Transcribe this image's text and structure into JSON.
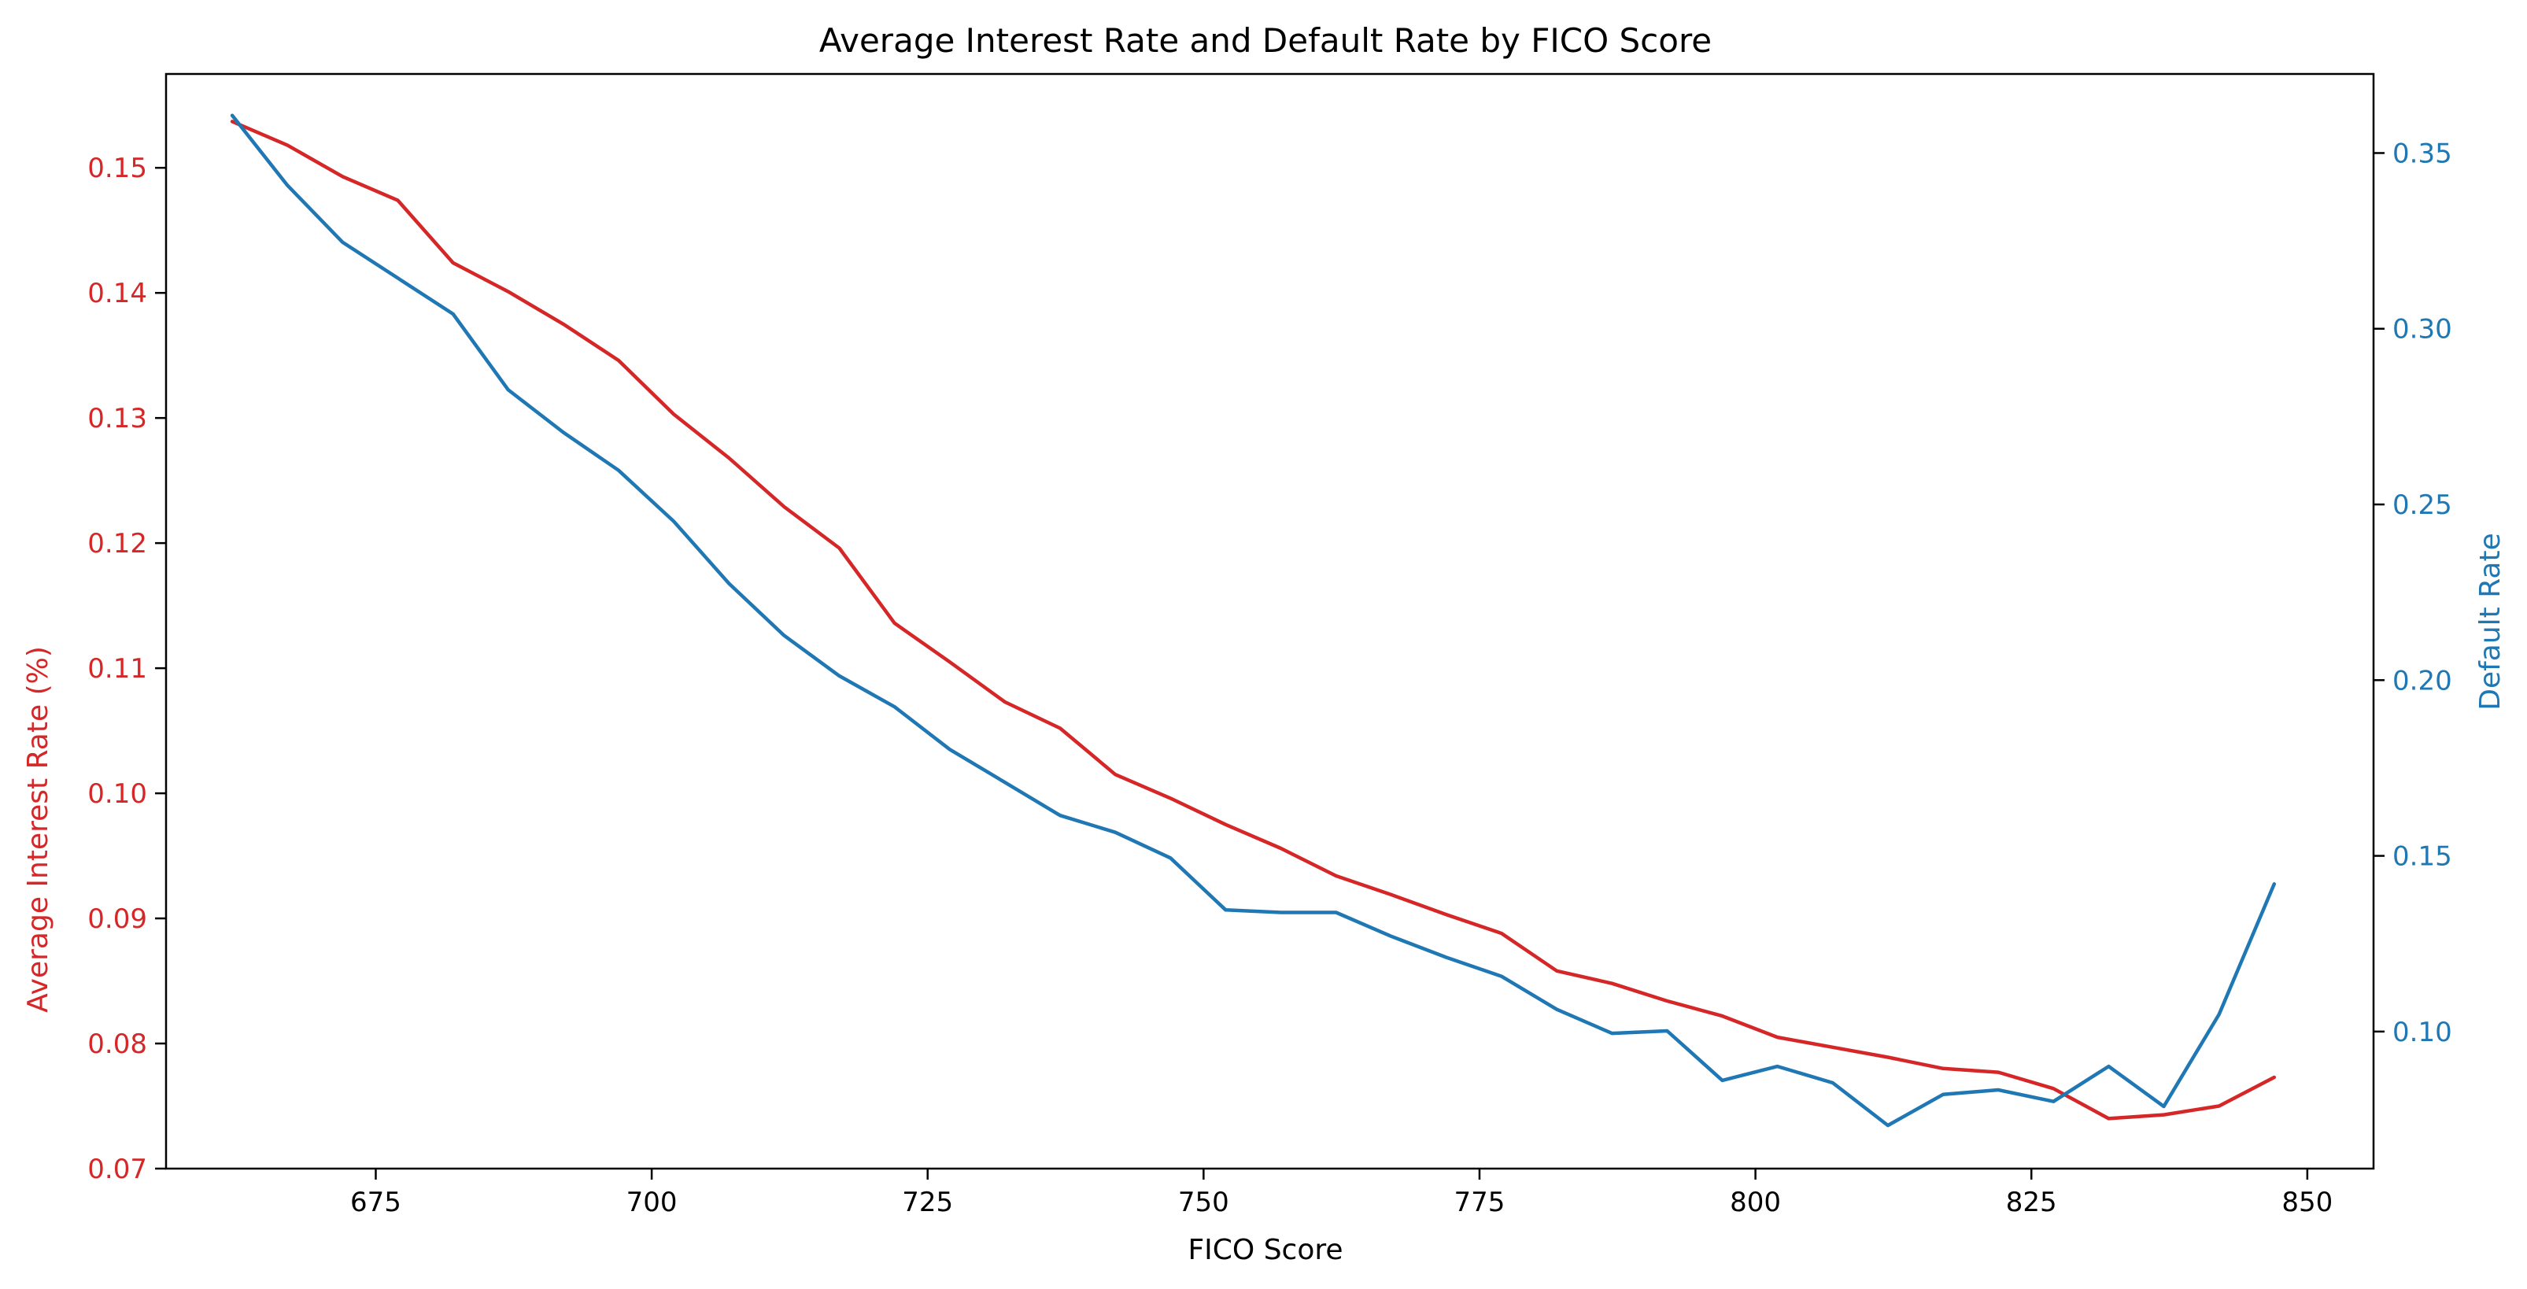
{
  "chart_data": {
    "type": "line",
    "title": "Average Interest Rate and Default Rate by FICO Score",
    "xlabel": "FICO Score",
    "ylabel_left": "Average Interest Rate (%)",
    "ylabel_right": "Default Rate",
    "xlim": [
      656,
      856
    ],
    "ylim_left": [
      0.07,
      0.1575
    ],
    "ylim_right": [
      0.061,
      0.3725
    ],
    "x_ticks": [
      675,
      700,
      725,
      750,
      775,
      800,
      825,
      850
    ],
    "y_left_ticks": [
      0.07,
      0.08,
      0.09,
      0.1,
      0.11,
      0.12,
      0.13,
      0.14,
      0.15
    ],
    "y_right_ticks": [
      0.1,
      0.15,
      0.2,
      0.25,
      0.3,
      0.35
    ],
    "grid": false,
    "x": [
      662,
      667,
      672,
      677,
      682,
      687,
      692,
      697,
      702,
      707,
      712,
      717,
      722,
      727,
      732,
      737,
      742,
      747,
      752,
      757,
      762,
      767,
      772,
      777,
      782,
      787,
      792,
      797,
      802,
      807,
      812,
      817,
      822,
      827,
      832,
      837,
      842,
      847
    ],
    "series": [
      {
        "name": "",
        "axis": "left",
        "color": "#d62728",
        "values": [
          0.1537,
          0.1518,
          0.1493,
          0.1474,
          0.1424,
          0.1401,
          0.1375,
          0.1346,
          0.1303,
          0.1268,
          0.1229,
          0.1196,
          0.1136,
          0.1105,
          0.1073,
          0.1052,
          0.1015,
          0.0996,
          0.0975,
          0.0956,
          0.0934,
          0.0919,
          0.0903,
          0.0888,
          0.0858,
          0.0848,
          0.0834,
          0.0822,
          0.0805,
          0.0797,
          0.0789,
          0.078,
          0.0777,
          0.0764,
          0.074,
          0.0743,
          0.075,
          0.0773
        ]
      },
      {
        "name": "",
        "axis": "right",
        "color": "#1f77b4",
        "values": [
          0.3607,
          0.3408,
          0.3246,
          0.3144,
          0.3042,
          0.2826,
          0.2705,
          0.2597,
          0.2452,
          0.2275,
          0.2127,
          0.2012,
          0.1924,
          0.1803,
          0.1709,
          0.1615,
          0.1567,
          0.1494,
          0.1346,
          0.1339,
          0.1339,
          0.1271,
          0.1211,
          0.1157,
          0.1063,
          0.0995,
          0.1002,
          0.0861,
          0.0901,
          0.0854,
          0.0733,
          0.0821,
          0.0834,
          0.0801,
          0.0901,
          0.0787,
          0.1049,
          0.142
        ]
      }
    ]
  }
}
